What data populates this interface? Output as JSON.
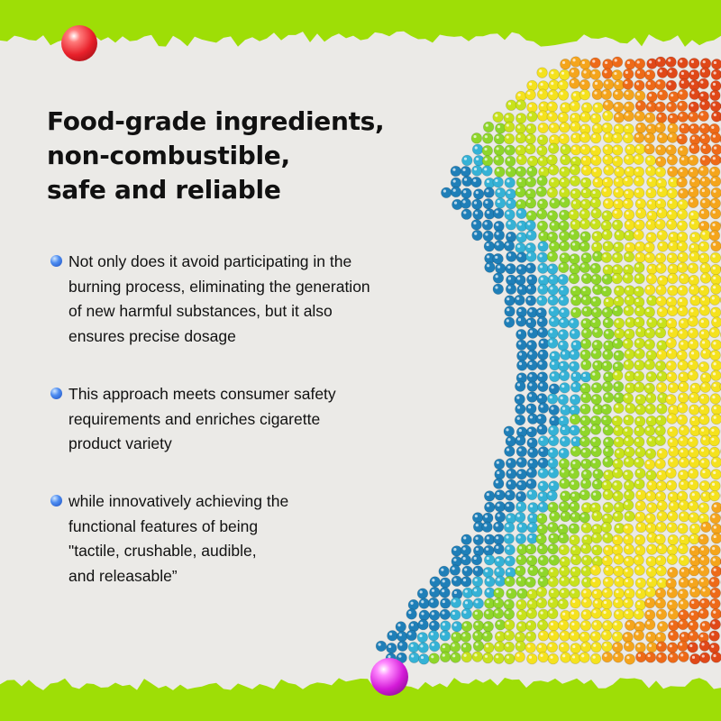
{
  "title": [
    "Food-grade ingredients,",
    "non-combustible,",
    "safe and reliable"
  ],
  "bullets": [
    {
      "lines": [
        "Not only does it avoid participating in the",
        "burning process, eliminating the generation",
        "of new harmful substances, but it also",
        "ensures precise dosage"
      ]
    },
    {
      "lines": [
        "This approach meets consumer safety",
        "requirements and enriches cigarette",
        "product variety"
      ]
    },
    {
      "lines": [
        "while innovatively achieving the",
        "functional features of being",
        "\"tactile, crushable, audible,",
        "and releasable”"
      ]
    }
  ],
  "colors": {
    "background": "#9ede06",
    "paper": "#ebeae7",
    "bullet": "#3b78e0",
    "pin_top": "#e8202a",
    "pin_bottom": "#d41ad8"
  },
  "decor": {
    "bead_bands": [
      "blue",
      "cyan",
      "lime",
      "yellow",
      "orange",
      "red"
    ]
  }
}
